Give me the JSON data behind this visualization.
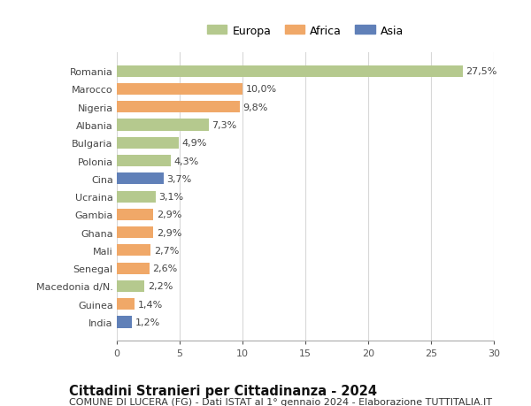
{
  "categories": [
    "Romania",
    "Marocco",
    "Nigeria",
    "Albania",
    "Bulgaria",
    "Polonia",
    "Cina",
    "Ucraina",
    "Gambia",
    "Ghana",
    "Mali",
    "Senegal",
    "Macedonia d/N.",
    "Guinea",
    "India"
  ],
  "values": [
    27.5,
    10.0,
    9.8,
    7.3,
    4.9,
    4.3,
    3.7,
    3.1,
    2.9,
    2.9,
    2.7,
    2.6,
    2.2,
    1.4,
    1.2
  ],
  "labels": [
    "27,5%",
    "10,0%",
    "9,8%",
    "7,3%",
    "4,9%",
    "4,3%",
    "3,7%",
    "3,1%",
    "2,9%",
    "2,9%",
    "2,7%",
    "2,6%",
    "2,2%",
    "1,4%",
    "1,2%"
  ],
  "colors": [
    "#b5c98e",
    "#f0a868",
    "#f0a868",
    "#b5c98e",
    "#b5c98e",
    "#b5c98e",
    "#6080b8",
    "#b5c98e",
    "#f0a868",
    "#f0a868",
    "#f0a868",
    "#f0a868",
    "#b5c98e",
    "#f0a868",
    "#6080b8"
  ],
  "legend_labels": [
    "Europa",
    "Africa",
    "Asia"
  ],
  "legend_colors": [
    "#b5c98e",
    "#f0a868",
    "#6080b8"
  ],
  "title": "Cittadini Stranieri per Cittadinanza - 2024",
  "subtitle": "COMUNE DI LUCERA (FG) - Dati ISTAT al 1° gennaio 2024 - Elaborazione TUTTITALIA.IT",
  "xlim": [
    0,
    30
  ],
  "xticks": [
    0,
    5,
    10,
    15,
    20,
    25,
    30
  ],
  "background_color": "#ffffff",
  "plot_bg_color": "#ffffff",
  "grid_color": "#d8d8d8",
  "bar_height": 0.65,
  "title_fontsize": 10.5,
  "subtitle_fontsize": 8,
  "label_fontsize": 8,
  "tick_fontsize": 8,
  "legend_fontsize": 9
}
